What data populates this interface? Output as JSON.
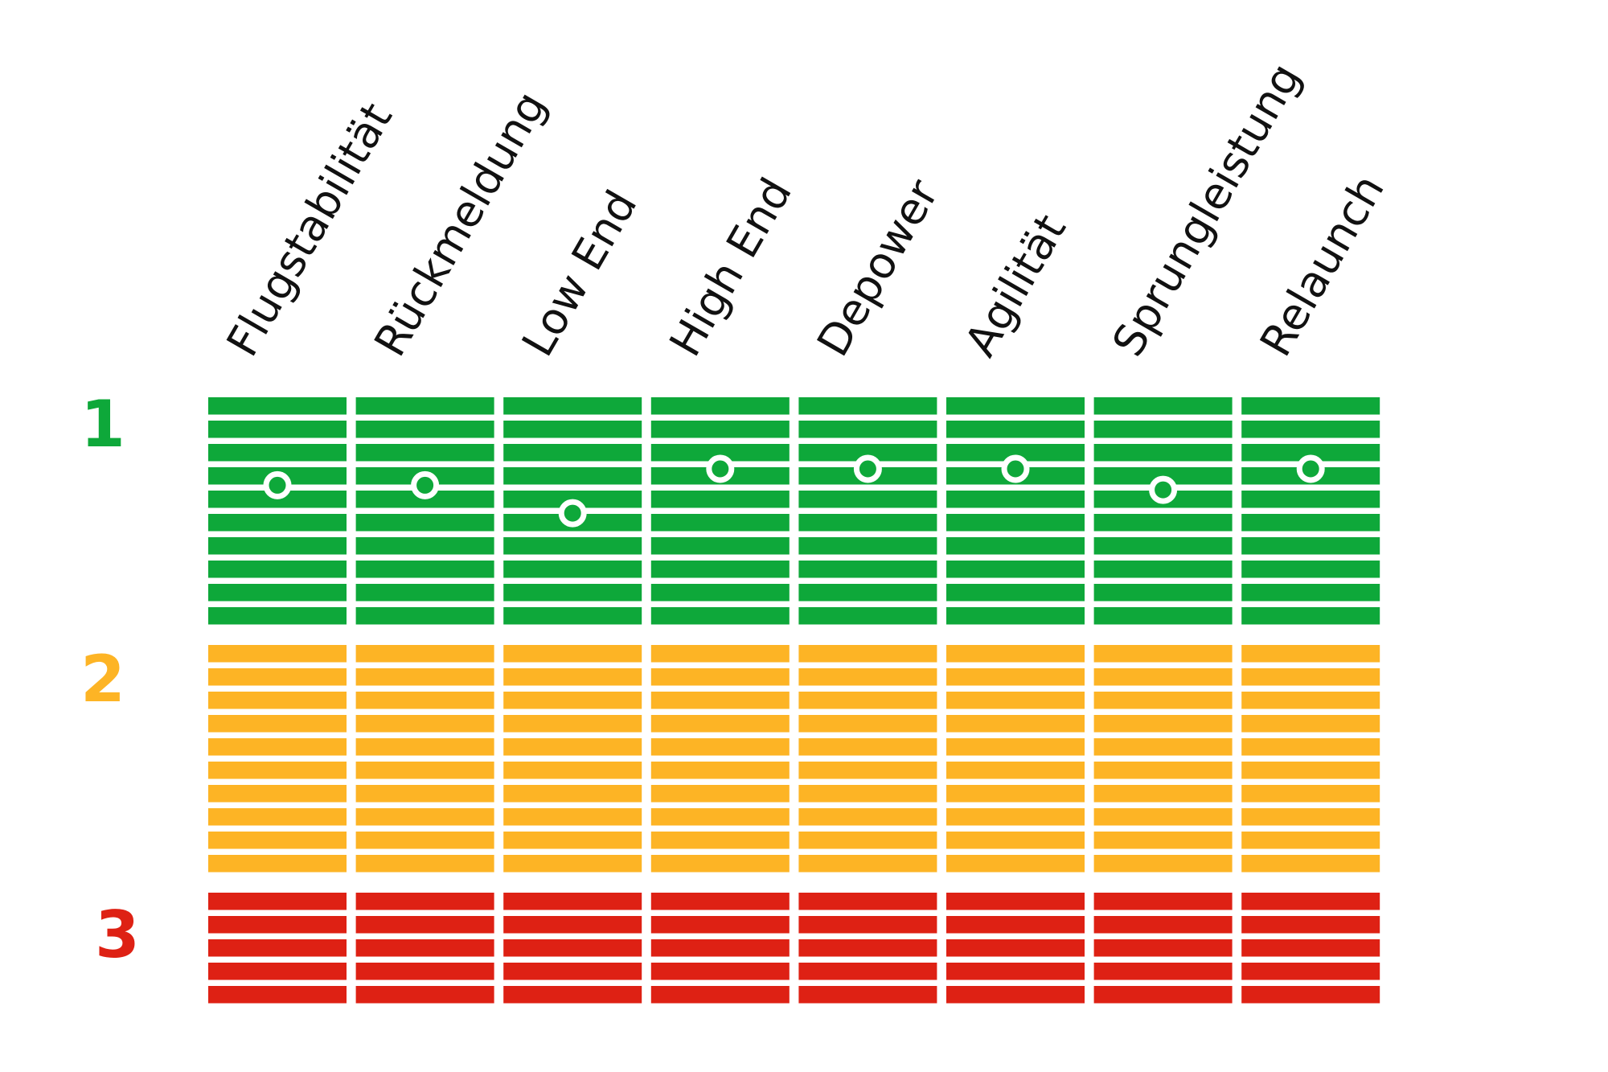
{
  "chart_data": {
    "type": "heatmap",
    "title": "",
    "categories": [
      "Flugstabilität",
      "Rückmeldung",
      "Low End",
      "High End",
      "Depower",
      "Agilität",
      "Sprungleistung",
      "Relaunch"
    ],
    "groups": [
      {
        "label": "1",
        "color": "#0ea83a",
        "stripes": 10
      },
      {
        "label": "2",
        "color": "#fdb425",
        "stripes": 10
      },
      {
        "label": "3",
        "color": "#de2114",
        "stripes": 5
      }
    ],
    "marker_positions": [
      3.4,
      3.4,
      4.6,
      2.7,
      2.7,
      2.7,
      3.6,
      2.7
    ],
    "marker_scale": "stripe index within group 1 (0 = top stripe)",
    "grid": false,
    "legend": "none"
  }
}
